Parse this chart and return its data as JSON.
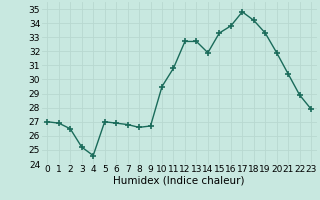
{
  "x": [
    0,
    1,
    2,
    3,
    4,
    5,
    6,
    7,
    8,
    9,
    10,
    11,
    12,
    13,
    14,
    15,
    16,
    17,
    18,
    19,
    20,
    21,
    22,
    23
  ],
  "y": [
    27.0,
    26.9,
    26.5,
    25.2,
    24.6,
    27.0,
    26.9,
    26.8,
    26.6,
    26.7,
    29.5,
    30.8,
    32.7,
    32.7,
    31.9,
    33.3,
    33.8,
    34.8,
    34.2,
    33.3,
    31.9,
    30.4,
    28.9,
    27.9
  ],
  "line_color": "#1a6b5a",
  "marker": "+",
  "marker_size": 4,
  "bg_color": "#c8e8e0",
  "grid_color": "#b8d8d0",
  "xlabel": "Humidex (Indice chaleur)",
  "ylim": [
    24,
    35.5
  ],
  "yticks": [
    24,
    25,
    26,
    27,
    28,
    29,
    30,
    31,
    32,
    33,
    34,
    35
  ],
  "xticks": [
    0,
    1,
    2,
    3,
    4,
    5,
    6,
    7,
    8,
    9,
    10,
    11,
    12,
    13,
    14,
    15,
    16,
    17,
    18,
    19,
    20,
    21,
    22,
    23
  ],
  "tick_fontsize": 6.5,
  "xlabel_fontsize": 7.5,
  "line_width": 1.0,
  "marker_color": "#1a6b5a"
}
